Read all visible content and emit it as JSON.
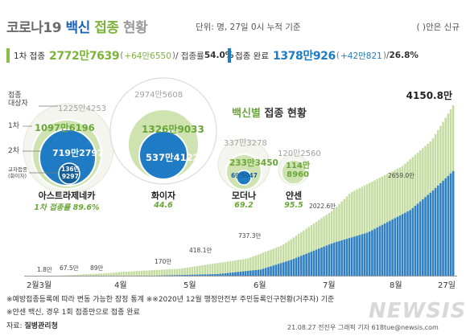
{
  "header": {
    "title_a": "코로나19",
    "title_b": "백신",
    "title_c": "접종",
    "title_d": "현황",
    "unit": "단위: 명, 27일 0시 누적 기준",
    "note": "( )안은 신규"
  },
  "stat_first": {
    "label": "1차 접종",
    "value": "2772만7639",
    "inc_open": "(",
    "inc_value": "+64만6550",
    "inc_close": ")",
    "rate_label": " / 접종률 ",
    "rate_value": "54.0%"
  },
  "stat_full": {
    "label": "접종 완료",
    "value": "1378만926",
    "inc_open": "(",
    "inc_value": "+42만821",
    "inc_close": ")",
    "rate_sep": " / ",
    "rate_value": "26.8%"
  },
  "legend_labels": {
    "target": "접종\n대상자",
    "first": "1차",
    "second": "2차",
    "cross": "교차접종\n(화이자)"
  },
  "vaccine_section_title_a": "백신별",
  "vaccine_section_title_b": " 접종 현황",
  "vaccines": [
    {
      "name": "아스트라제네카",
      "target": "1225만4253",
      "first": "1097만6196",
      "second": "719만2797",
      "cross": "136만\n9297",
      "rate": "1차 접종률 89.6%"
    },
    {
      "name": "화이자",
      "target": "2974만5608",
      "first": "1326만9033",
      "second": "537만4122",
      "rate": "44.6"
    },
    {
      "name": "모더나",
      "target": "337만3278",
      "first": "233만3450",
      "second": "6만5047",
      "rate": "69.2"
    },
    {
      "name": "얀센",
      "target": "120만2560",
      "first": "114만\n8960",
      "rate": "95.5"
    }
  ],
  "chart_data": {
    "type": "area",
    "title": "",
    "x_labels": [
      "2월3월",
      "4월",
      "5월",
      "6월",
      "7월",
      "8월",
      "27일"
    ],
    "annotations": [
      {
        "label": "1.8만",
        "value": 1.8
      },
      {
        "label": "67.5만",
        "value": 67.5
      },
      {
        "label": "89만",
        "value": 89
      },
      {
        "label": "170만",
        "value": 170
      },
      {
        "label": "418.1만",
        "value": 418.1
      },
      {
        "label": "737.3만",
        "value": 737.3
      },
      {
        "label": "2022.6만",
        "value": 2022.6
      },
      {
        "label": "2659.0만",
        "value": 2659.0
      },
      {
        "label": "4150.8만",
        "value": 4150.8
      }
    ],
    "series": [
      {
        "name": "1차",
        "color": "#c5dca3"
      },
      {
        "name": "접종 완료",
        "color": "#2f7fc6"
      }
    ]
  },
  "footnotes": {
    "f1": "※예방접종등록에 따라 변동 가능한 잠정 통계 ※※2020년 12월 행정안전부 주민등록인구현황(거주자) 기준",
    "f2": "※얀센 백신, 경우 1회 접종만으로 접종 완료",
    "source_label": "자료: ",
    "source": "질병관리청",
    "credit": "21.08.27 전진우 그래픽 기자 618tue@newsis.com",
    "watermark": "NEWSIS"
  },
  "colors": {
    "first_green": "#8cbd46",
    "done_blue": "#1e7cc4",
    "circle_outer": "#f1f5ea",
    "circle_first": "#c7de9f"
  }
}
